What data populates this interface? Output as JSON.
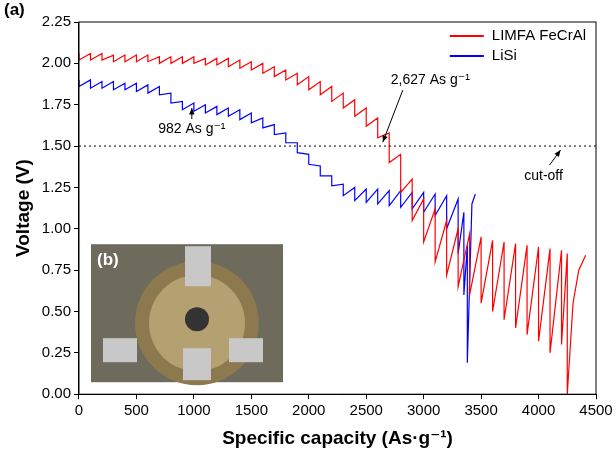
{
  "chart_data": {
    "type": "line",
    "panel_label": "(a)",
    "inset_label": "(b)",
    "x_label": "Specific capacity (As·g⁻¹)",
    "y_label": "Voltage (V)",
    "xlim": [
      0,
      4500
    ],
    "xticks": [
      0,
      500,
      1000,
      1500,
      2000,
      2500,
      3000,
      3500,
      4000,
      4500
    ],
    "ylim": [
      0,
      2.25
    ],
    "yticks": [
      {
        "value": 0,
        "label": "0.00"
      },
      {
        "value": 0.25,
        "label": "0.25"
      },
      {
        "value": 0.5,
        "label": "0.50"
      },
      {
        "value": 0.75,
        "label": "0.75"
      },
      {
        "value": 1,
        "label": "1.00"
      },
      {
        "value": 1.25,
        "label": "1.25"
      },
      {
        "value": 1.5,
        "label": "1.50"
      },
      {
        "value": 1.75,
        "label": "1.75"
      },
      {
        "value": 2,
        "label": "2.00"
      },
      {
        "value": 2.25,
        "label": "2.25"
      }
    ],
    "grid": false,
    "legend": "upper right",
    "marker": "none",
    "line_style": "solid",
    "hlines": [
      {
        "y": 1.5,
        "line_style": "dotted"
      }
    ],
    "annotations": [
      {
        "text": "982 As g⁻¹",
        "x": 982,
        "y": 1.76
      },
      {
        "text": "2,627 As g⁻¹",
        "x": 2627,
        "y": 1.5
      },
      {
        "text": "cut-off",
        "x": 4200,
        "y": 1.5
      }
    ],
    "series": [
      {
        "name": "LIMFA FeCrAl",
        "color": "#ff0000",
        "x": [
          0,
          0,
          100,
          100,
          200,
          200,
          300,
          300,
          400,
          400,
          500,
          500,
          600,
          600,
          700,
          700,
          800,
          800,
          900,
          900,
          1000,
          1000,
          1100,
          1100,
          1200,
          1200,
          1300,
          1300,
          1400,
          1400,
          1500,
          1500,
          1600,
          1600,
          1700,
          1700,
          1800,
          1800,
          1900,
          1900,
          2000,
          2000,
          2100,
          2100,
          2200,
          2200,
          2300,
          2300,
          2400,
          2400,
          2500,
          2500,
          2600,
          2600,
          2700,
          2700,
          2800,
          2800,
          2900,
          2900,
          3000,
          3000,
          3100,
          3100,
          3200,
          3200,
          3300,
          3300,
          3400,
          3400,
          3500,
          3500,
          3600,
          3600,
          3700,
          3700,
          3800,
          3800,
          3900,
          3900,
          4000,
          4000,
          4100,
          4100,
          4200,
          4200,
          4250,
          4250,
          4300,
          4350,
          4410
        ],
        "values": [
          2.06,
          2.02,
          2.06,
          2.02,
          2.06,
          2.02,
          2.05,
          2.01,
          2.05,
          2.01,
          2.05,
          2.01,
          2.05,
          2.01,
          2.04,
          2.0,
          2.04,
          2.0,
          2.04,
          2.0,
          2.04,
          2.0,
          2.03,
          1.99,
          2.03,
          1.99,
          2.03,
          1.98,
          2.02,
          1.97,
          2.01,
          1.96,
          2.0,
          1.94,
          1.98,
          1.92,
          1.96,
          1.9,
          1.94,
          1.87,
          1.92,
          1.84,
          1.89,
          1.81,
          1.86,
          1.77,
          1.82,
          1.73,
          1.78,
          1.68,
          1.73,
          1.62,
          1.67,
          1.55,
          1.58,
          1.4,
          1.45,
          1.22,
          1.3,
          1.05,
          1.18,
          0.92,
          1.12,
          0.8,
          1.05,
          0.72,
          1.0,
          0.65,
          0.97,
          0.6,
          0.95,
          0.55,
          0.93,
          0.5,
          0.92,
          0.45,
          0.91,
          0.4,
          0.9,
          0.36,
          0.89,
          0.32,
          0.88,
          0.25,
          0.87,
          0.3,
          0.85,
          0,
          0.55,
          0.75,
          0.84
        ]
      },
      {
        "name": "LiSi",
        "color": "#0000ff",
        "x": [
          0,
          0,
          100,
          100,
          200,
          200,
          300,
          300,
          400,
          400,
          500,
          500,
          600,
          600,
          700,
          700,
          800,
          800,
          900,
          900,
          1000,
          1000,
          1100,
          1100,
          1200,
          1200,
          1300,
          1300,
          1400,
          1400,
          1500,
          1500,
          1600,
          1600,
          1700,
          1700,
          1800,
          1800,
          1900,
          1900,
          2000,
          2000,
          2100,
          2100,
          2200,
          2200,
          2300,
          2300,
          2400,
          2400,
          2500,
          2500,
          2600,
          2600,
          2700,
          2700,
          2800,
          2800,
          2900,
          2900,
          3000,
          3000,
          3100,
          3100,
          3200,
          3200,
          3300,
          3300,
          3350,
          3350,
          3380,
          3380,
          3420,
          3450
        ],
        "values": [
          1.9,
          1.86,
          1.9,
          1.85,
          1.89,
          1.85,
          1.89,
          1.84,
          1.88,
          1.84,
          1.88,
          1.83,
          1.87,
          1.82,
          1.86,
          1.81,
          1.82,
          1.76,
          1.77,
          1.72,
          1.76,
          1.71,
          1.75,
          1.7,
          1.74,
          1.69,
          1.73,
          1.68,
          1.72,
          1.66,
          1.7,
          1.64,
          1.67,
          1.61,
          1.63,
          1.57,
          1.58,
          1.52,
          1.52,
          1.46,
          1.45,
          1.39,
          1.38,
          1.32,
          1.32,
          1.26,
          1.27,
          1.2,
          1.25,
          1.17,
          1.24,
          1.16,
          1.24,
          1.15,
          1.23,
          1.14,
          1.23,
          1.13,
          1.22,
          1.12,
          1.22,
          1.1,
          1.21,
          1.08,
          1.2,
          1.0,
          1.18,
          0.85,
          1.1,
          0.6,
          0.9,
          0.19,
          1.15,
          1.21
        ]
      }
    ]
  }
}
